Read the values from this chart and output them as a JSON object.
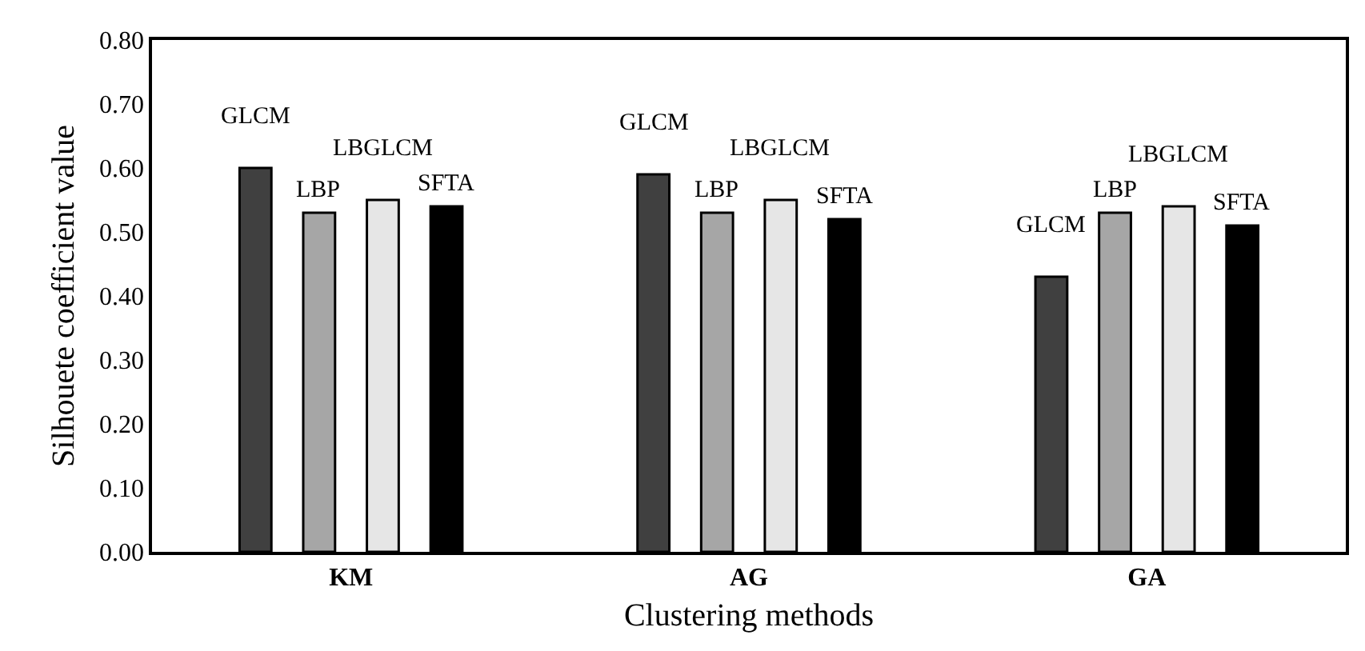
{
  "chart_data": {
    "type": "bar",
    "xlabel": "Clustering methods",
    "ylabel": "Silhouete coefficient value",
    "categories": [
      "KM",
      "AG",
      "GA"
    ],
    "series": [
      {
        "name": "GLCM",
        "color": "#404040",
        "values": [
          0.6,
          0.59,
          0.43
        ]
      },
      {
        "name": "LBP",
        "color": "#a6a6a6",
        "values": [
          0.53,
          0.53,
          0.53
        ]
      },
      {
        "name": "LBGLCM",
        "color": "#e6e6e6",
        "values": [
          0.55,
          0.55,
          0.54
        ]
      },
      {
        "name": "SFTA",
        "color": "#000000",
        "values": [
          0.54,
          0.52,
          0.51
        ]
      }
    ],
    "ylim": [
      0,
      0.8
    ],
    "yticks": [
      {
        "value": 0,
        "label": "0.00"
      },
      {
        "value": 0.1,
        "label": "0.10"
      },
      {
        "value": 0.2,
        "label": "0.20"
      },
      {
        "value": 0.3,
        "label": "0.30"
      },
      {
        "value": 0.4,
        "label": "0.40"
      },
      {
        "value": 0.5,
        "label": "0.50"
      },
      {
        "value": 0.6,
        "label": "0.60"
      },
      {
        "value": 0.7,
        "label": "0.70"
      },
      {
        "value": 0.8,
        "label": "0.80"
      }
    ],
    "legend": false
  }
}
